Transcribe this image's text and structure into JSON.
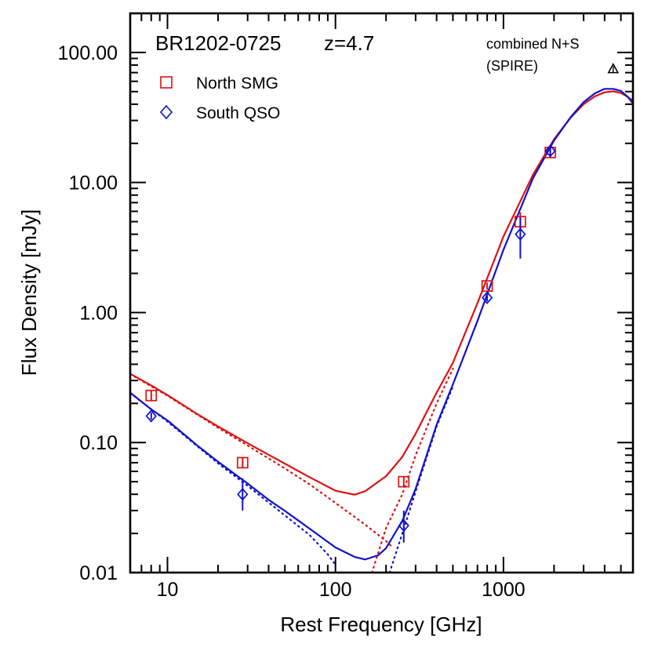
{
  "chart_data": {
    "type": "scatter",
    "title": "BR1202-0725",
    "subtitle": "z=4.7",
    "xlabel": "Rest Frequency [GHz]",
    "ylabel": "Flux Density [mJy]",
    "xscale": "log",
    "yscale": "log",
    "xlim": [
      6,
      5900
    ],
    "ylim": [
      0.01,
      200
    ],
    "xticks": [
      10,
      100,
      1000
    ],
    "xtick_labels": [
      "10",
      "100",
      "1000"
    ],
    "yticks": [
      0.01,
      0.1,
      1,
      10,
      100
    ],
    "ytick_labels": [
      "0.01",
      "0.10",
      "1.00",
      "10.00",
      "100.00"
    ],
    "grid": false,
    "legend_position": "top-left",
    "annotation": {
      "line1": "combined N+S",
      "line2": "(SPIRE)",
      "upper_limit": {
        "x": 4500,
        "y": 75
      }
    },
    "series": [
      {
        "name": "North SMG",
        "color": "#dd1111",
        "marker": "square",
        "points": [
          {
            "x": 8,
            "y": 0.23,
            "lo": 0.21,
            "hi": 0.25
          },
          {
            "x": 28,
            "y": 0.07,
            "lo": 0.064,
            "hi": 0.077
          },
          {
            "x": 255,
            "y": 0.05,
            "lo": 0.046,
            "hi": 0.055
          },
          {
            "x": 800,
            "y": 1.6,
            "lo": 1.5,
            "hi": 1.7
          },
          {
            "x": 1260,
            "y": 5.0,
            "lo": 4.3,
            "hi": 5.9
          },
          {
            "x": 1900,
            "y": 17,
            "lo": 15.5,
            "hi": 18.5
          }
        ],
        "fit_total": [
          [
            6,
            0.338
          ],
          [
            8,
            0.275
          ],
          [
            10,
            0.232
          ],
          [
            15,
            0.166
          ],
          [
            20,
            0.133
          ],
          [
            30,
            0.0988
          ],
          [
            40,
            0.0805
          ],
          [
            50,
            0.0688
          ],
          [
            70,
            0.0542
          ],
          [
            100,
            0.0426
          ],
          [
            130,
            0.0397
          ],
          [
            150,
            0.0422
          ],
          [
            200,
            0.0551
          ],
          [
            250,
            0.0776
          ],
          [
            300,
            0.117
          ],
          [
            400,
            0.242
          ],
          [
            500,
            0.41
          ],
          [
            700,
            1.18
          ],
          [
            1000,
            3.84
          ],
          [
            1500,
            11.5
          ],
          [
            2000,
            21.5
          ],
          [
            2500,
            31.3
          ],
          [
            3000,
            40
          ],
          [
            3500,
            46
          ],
          [
            4000,
            49.4
          ],
          [
            4500,
            50.3
          ],
          [
            5000,
            48.8
          ],
          [
            5500,
            45.5
          ],
          [
            5900,
            42.5
          ]
        ],
        "fit_sync": [
          [
            6,
            0.336
          ],
          [
            10,
            0.229
          ],
          [
            20,
            0.13
          ],
          [
            30,
            0.0948
          ],
          [
            50,
            0.0632
          ],
          [
            70,
            0.0478
          ],
          [
            100,
            0.0343
          ],
          [
            150,
            0.0234
          ],
          [
            200,
            0.0175
          ],
          [
            220,
            0.0155
          ]
        ],
        "fit_dust": [
          [
            165,
            0.01
          ],
          [
            200,
            0.022
          ],
          [
            250,
            0.04
          ],
          [
            300,
            0.08
          ],
          [
            400,
            0.2
          ],
          [
            500,
            0.37
          ]
        ]
      },
      {
        "name": "South QSO",
        "color": "#1111cc",
        "marker": "diamond",
        "points": [
          {
            "x": 8,
            "y": 0.16,
            "lo": 0.15,
            "hi": 0.17
          },
          {
            "x": 28,
            "y": 0.04,
            "lo": 0.03,
            "hi": 0.053
          },
          {
            "x": 255,
            "y": 0.023,
            "lo": 0.017,
            "hi": 0.03
          },
          {
            "x": 800,
            "y": 1.3,
            "lo": 1.22,
            "hi": 1.38
          },
          {
            "x": 1260,
            "y": 4.0,
            "lo": 2.6,
            "hi": 5.4
          },
          {
            "x": 1900,
            "y": 17.5,
            "lo": 16.2,
            "hi": 18.8
          }
        ],
        "fit_total": [
          [
            6,
            0.242
          ],
          [
            8,
            0.18
          ],
          [
            10,
            0.148
          ],
          [
            15,
            0.0952
          ],
          [
            20,
            0.0712
          ],
          [
            30,
            0.0484
          ],
          [
            40,
            0.0363
          ],
          [
            50,
            0.0298
          ],
          [
            70,
            0.0218
          ],
          [
            100,
            0.0156
          ],
          [
            130,
            0.0132
          ],
          [
            150,
            0.0126
          ],
          [
            180,
            0.0136
          ],
          [
            200,
            0.0154
          ],
          [
            250,
            0.025
          ],
          [
            300,
            0.044
          ],
          [
            400,
            0.137
          ],
          [
            500,
            0.28
          ],
          [
            700,
            0.86
          ],
          [
            1000,
            3.04
          ],
          [
            1500,
            10.8
          ],
          [
            2000,
            21
          ],
          [
            2500,
            31.6
          ],
          [
            3000,
            41.5
          ],
          [
            3500,
            48.5
          ],
          [
            4000,
            52.5
          ],
          [
            4500,
            52.5
          ],
          [
            5000,
            50.6
          ],
          [
            5500,
            45.5
          ],
          [
            5900,
            40.5
          ]
        ],
        "fit_sync": [
          [
            6,
            0.24
          ],
          [
            10,
            0.145
          ],
          [
            20,
            0.0692
          ],
          [
            30,
            0.0465
          ],
          [
            50,
            0.0275
          ],
          [
            70,
            0.0195
          ],
          [
            90,
            0.0138
          ],
          [
            100,
            0.0115
          ]
        ],
        "fit_dust": [
          [
            210,
            0.01
          ],
          [
            250,
            0.02
          ],
          [
            300,
            0.042
          ],
          [
            400,
            0.133
          ],
          [
            500,
            0.27
          ]
        ]
      }
    ]
  }
}
